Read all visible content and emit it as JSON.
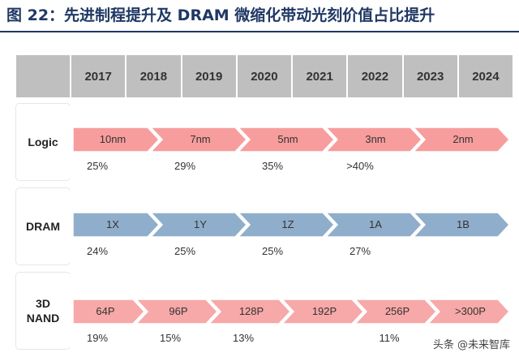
{
  "title": "图 22：先进制程提升及 DRAM 微缩化带动光刻价值占比提升",
  "years": [
    "2017",
    "2018",
    "2019",
    "2020",
    "2021",
    "2022",
    "2023",
    "2024"
  ],
  "colors": {
    "logic": "#f79d9d",
    "dram": "#8faecb",
    "nand": "#f7a8a8",
    "header": "#bfbfbf",
    "title": "#1f3864"
  },
  "rows": [
    {
      "label": "Logic",
      "color_key": "logic",
      "nodes": [
        {
          "label": "10nm",
          "pct": "25%"
        },
        {
          "label": "7nm",
          "pct": "29%"
        },
        {
          "label": "5nm",
          "pct": "35%"
        },
        {
          "label": "3nm",
          "pct": ">40%"
        },
        {
          "label": "2nm",
          "pct": ""
        }
      ]
    },
    {
      "label": "DRAM",
      "color_key": "dram",
      "nodes": [
        {
          "label": "1X",
          "pct": "24%"
        },
        {
          "label": "1Y",
          "pct": "25%"
        },
        {
          "label": "1Z",
          "pct": "25%"
        },
        {
          "label": "1A",
          "pct": "27%"
        },
        {
          "label": "1B",
          "pct": ""
        }
      ]
    },
    {
      "label": "3D\nNAND",
      "color_key": "nand",
      "nodes": [
        {
          "label": "64P",
          "pct": "19%"
        },
        {
          "label": "96P",
          "pct": "15%"
        },
        {
          "label": "128P",
          "pct": "13%"
        },
        {
          "label": "192P",
          "pct": ""
        },
        {
          "label": "256P",
          "pct": "11%"
        },
        {
          "label": ">300P",
          "pct": ""
        }
      ]
    }
  ],
  "watermark": "头条 @未来智库"
}
